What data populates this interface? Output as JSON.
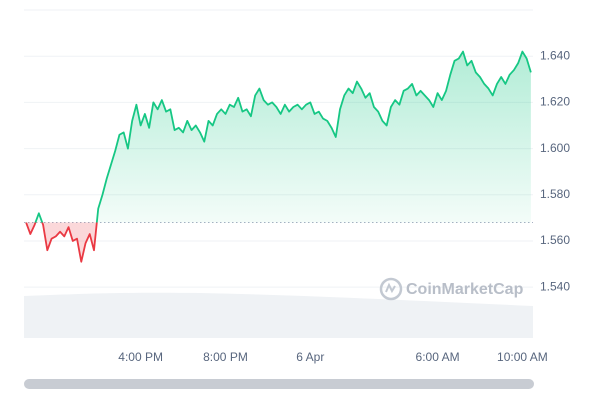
{
  "chart_data": {
    "type": "line",
    "watermark": "CoinMarketCap",
    "x": [
      10.6,
      10.8,
      11,
      11.2,
      11.4,
      11.6,
      11.8,
      12,
      12.2,
      12.4,
      12.6,
      12.8,
      13,
      13.2,
      13.4,
      13.6,
      13.8,
      14,
      14.2,
      14.4,
      14.6,
      14.8,
      15,
      15.2,
      15.4,
      15.6,
      15.8,
      16,
      16.2,
      16.4,
      16.6,
      16.8,
      17,
      17.2,
      17.4,
      17.6,
      17.8,
      18,
      18.2,
      18.4,
      18.6,
      18.8,
      19,
      19.2,
      19.4,
      19.6,
      19.8,
      20,
      20.2,
      20.4,
      20.6,
      20.8,
      21,
      21.2,
      21.4,
      21.6,
      21.8,
      22,
      22.2,
      22.4,
      22.6,
      22.8,
      23,
      23.2,
      23.4,
      23.6,
      23.8,
      24,
      24.2,
      24.4,
      24.6,
      24.8,
      25,
      25.2,
      25.4,
      25.6,
      25.8,
      26,
      26.2,
      26.4,
      26.6,
      26.8,
      27,
      27.2,
      27.4,
      27.6,
      27.8,
      28,
      28.2,
      28.4,
      28.6,
      28.8,
      29,
      29.2,
      29.4,
      29.6,
      29.8,
      30,
      30.2,
      30.4,
      30.6,
      30.8,
      31,
      31.2,
      31.4,
      31.6,
      31.8,
      32,
      32.2,
      32.4,
      32.6,
      32.8,
      33,
      33.2,
      33.4,
      33.6,
      33.8,
      34,
      34.2,
      34.4
    ],
    "values": [
      1.568,
      1.563,
      1.567,
      1.572,
      1.567,
      1.556,
      1.561,
      1.562,
      1.564,
      1.562,
      1.566,
      1.56,
      1.561,
      1.551,
      1.559,
      1.563,
      1.556,
      1.574,
      1.58,
      1.587,
      1.593,
      1.599,
      1.606,
      1.607,
      1.6,
      1.612,
      1.619,
      1.61,
      1.615,
      1.609,
      1.62,
      1.617,
      1.621,
      1.616,
      1.617,
      1.608,
      1.609,
      1.607,
      1.612,
      1.608,
      1.61,
      1.607,
      1.603,
      1.612,
      1.61,
      1.615,
      1.617,
      1.615,
      1.619,
      1.618,
      1.622,
      1.616,
      1.617,
      1.614,
      1.623,
      1.626,
      1.621,
      1.619,
      1.62,
      1.618,
      1.615,
      1.619,
      1.616,
      1.618,
      1.619,
      1.617,
      1.619,
      1.62,
      1.615,
      1.616,
      1.613,
      1.612,
      1.609,
      1.605,
      1.617,
      1.623,
      1.626,
      1.624,
      1.629,
      1.626,
      1.622,
      1.624,
      1.618,
      1.616,
      1.612,
      1.61,
      1.618,
      1.621,
      1.619,
      1.625,
      1.626,
      1.628,
      1.623,
      1.625,
      1.623,
      1.621,
      1.618,
      1.624,
      1.621,
      1.625,
      1.632,
      1.638,
      1.639,
      1.642,
      1.636,
      1.638,
      1.633,
      1.631,
      1.628,
      1.626,
      1.623,
      1.628,
      1.631,
      1.628,
      1.632,
      1.634,
      1.637,
      1.642,
      1.639,
      1.633
    ],
    "color": "#16c784",
    "down_color": "#ea3943",
    "baseline": 1.568,
    "xlim": [
      10.5,
      34.5
    ],
    "xticks": [
      {
        "value": 16,
        "label": "4:00 PM"
      },
      {
        "value": 20,
        "label": "8:00 PM"
      },
      {
        "value": 24,
        "label": "6 Apr"
      },
      {
        "value": 30,
        "label": "6:00 AM"
      },
      {
        "value": 34,
        "label": "10:00 AM"
      }
    ],
    "ylim": [
      1.518,
      1.66
    ],
    "yticks": [
      {
        "value": 1.54,
        "label": "1.540"
      },
      {
        "value": 1.56,
        "label": "1.560"
      },
      {
        "value": 1.58,
        "label": "1.580"
      },
      {
        "value": 1.6,
        "label": "1.600"
      },
      {
        "value": 1.62,
        "label": "1.620"
      },
      {
        "value": 1.64,
        "label": "1.640"
      }
    ],
    "grid": true
  }
}
